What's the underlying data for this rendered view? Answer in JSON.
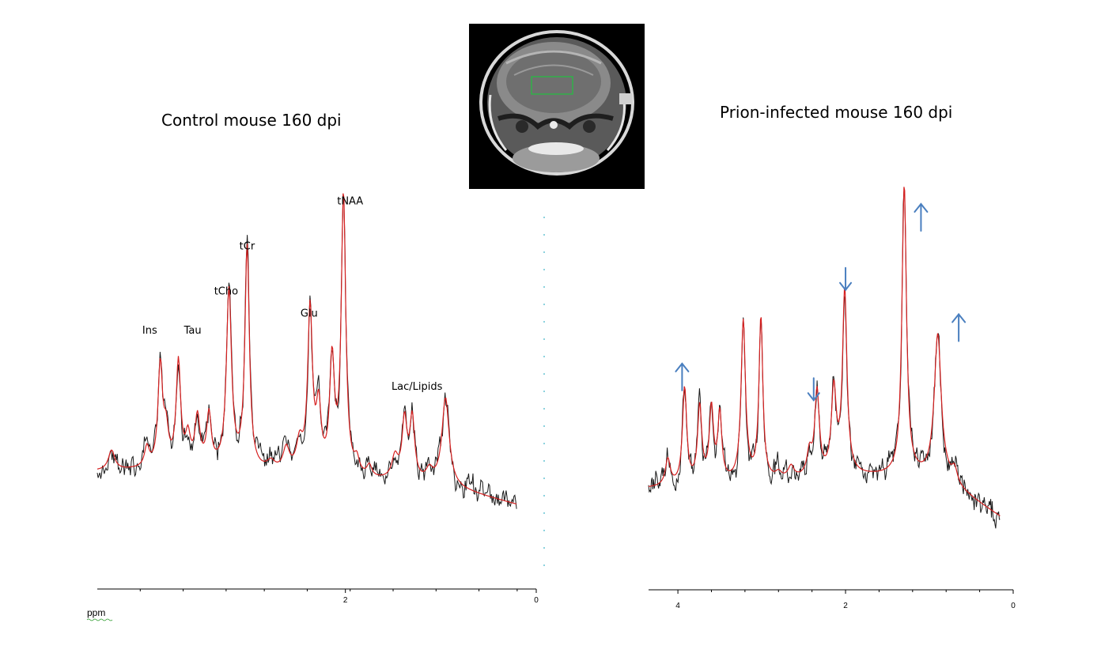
{
  "colors": {
    "measured": "#1a1a1a",
    "fit": "#d62020",
    "arrow": "#4a7fbf",
    "roi": "#22c040",
    "divider": "#3bb2c6"
  },
  "mri_image": {
    "description_icon": "brain-mri-icon"
  },
  "chart_data": [
    {
      "type": "line",
      "title": "Control mouse 160 dpi",
      "xlabel": "ppm",
      "ylabel": "",
      "x_reversed": true,
      "xlim": [
        4.6,
        0.0
      ],
      "ylim": [
        -0.15,
        1.0
      ],
      "ticks": [
        {
          "value": 2,
          "label": "2"
        },
        {
          "value": 0,
          "label": "0"
        }
      ],
      "minor_ticks": [
        4.15,
        3.7,
        3.25,
        2.85,
        2.4,
        1.95,
        1.5,
        1.05,
        0.6,
        0.2
      ],
      "baseline": [
        [
          4.6,
          0.11
        ],
        [
          3.5,
          0.12
        ],
        [
          2.8,
          0.1
        ],
        [
          2.0,
          0.08
        ],
        [
          1.0,
          0.06
        ],
        [
          0.2,
          -0.01
        ]
      ],
      "peaks": [
        {
          "ppm": 4.45,
          "height": 0.07,
          "width": 0.04
        },
        {
          "ppm": 4.08,
          "height": 0.07,
          "width": 0.03
        },
        {
          "ppm": 3.94,
          "height": 0.36,
          "width": 0.028
        },
        {
          "ppm": 3.88,
          "height": 0.12,
          "width": 0.03
        },
        {
          "ppm": 3.75,
          "height": 0.37,
          "width": 0.028
        },
        {
          "ppm": 3.65,
          "height": 0.1,
          "width": 0.03
        },
        {
          "ppm": 3.55,
          "height": 0.17,
          "width": 0.03
        },
        {
          "ppm": 3.43,
          "height": 0.18,
          "width": 0.028
        },
        {
          "ppm": 3.22,
          "height": 0.63,
          "width": 0.032
        },
        {
          "ppm": 3.03,
          "height": 0.79,
          "width": 0.028
        },
        {
          "ppm": 2.78,
          "height": 0.03,
          "width": 0.05
        },
        {
          "ppm": 2.62,
          "height": 0.08,
          "width": 0.04
        },
        {
          "ppm": 2.48,
          "height": 0.1,
          "width": 0.04
        },
        {
          "ppm": 2.37,
          "height": 0.58,
          "width": 0.03
        },
        {
          "ppm": 2.28,
          "height": 0.22,
          "width": 0.03
        },
        {
          "ppm": 2.14,
          "height": 0.4,
          "width": 0.03
        },
        {
          "ppm": 2.02,
          "height": 1.0,
          "width": 0.028
        },
        {
          "ppm": 1.88,
          "height": 0.05,
          "width": 0.03
        },
        {
          "ppm": 1.75,
          "height": 0.04,
          "width": 0.03
        },
        {
          "ppm": 1.48,
          "height": 0.08,
          "width": 0.04
        },
        {
          "ppm": 1.38,
          "height": 0.21,
          "width": 0.03
        },
        {
          "ppm": 1.3,
          "height": 0.22,
          "width": 0.03
        },
        {
          "ppm": 1.12,
          "height": 0.04,
          "width": 0.04
        },
        {
          "ppm": 0.95,
          "height": 0.31,
          "width": 0.045
        }
      ],
      "annotations": [
        {
          "text": "Ins",
          "ppm": 4.05,
          "y": 0.6
        },
        {
          "text": "Tau",
          "ppm": 3.6,
          "y": 0.6
        },
        {
          "text": "tCho",
          "ppm": 3.25,
          "y": 0.74
        },
        {
          "text": "tCr",
          "ppm": 3.03,
          "y": 0.9
        },
        {
          "text": "Glu",
          "ppm": 2.38,
          "y": 0.66
        },
        {
          "text": "tNAA",
          "ppm": 1.95,
          "y": 1.06
        },
        {
          "text": "Lac/Lipids",
          "ppm": 1.25,
          "y": 0.4
        }
      ],
      "arrows": []
    },
    {
      "type": "line",
      "title": "Prion-infected mouse 160 dpi",
      "xlabel": "",
      "ylabel": "",
      "x_reversed": true,
      "xlim": [
        4.35,
        0.0
      ],
      "ylim": [
        -0.2,
        1.0
      ],
      "ticks": [
        {
          "value": 4,
          "label": "4"
        },
        {
          "value": 2,
          "label": "2"
        },
        {
          "value": 0,
          "label": "0"
        }
      ],
      "minor_ticks": [
        3.6,
        3.2,
        2.8,
        2.4,
        1.6,
        1.2,
        0.8,
        0.4
      ],
      "baseline": [
        [
          4.35,
          0.02
        ],
        [
          3.8,
          0.03
        ],
        [
          3.0,
          0.04
        ],
        [
          2.0,
          0.06
        ],
        [
          1.2,
          0.06
        ],
        [
          0.8,
          0.04
        ],
        [
          0.15,
          -0.08
        ]
      ],
      "peaks": [
        {
          "ppm": 4.12,
          "height": 0.09,
          "width": 0.035
        },
        {
          "ppm": 3.92,
          "height": 0.33,
          "width": 0.03
        },
        {
          "ppm": 3.74,
          "height": 0.26,
          "width": 0.03
        },
        {
          "ppm": 3.6,
          "height": 0.25,
          "width": 0.03
        },
        {
          "ppm": 3.5,
          "height": 0.23,
          "width": 0.028
        },
        {
          "ppm": 3.22,
          "height": 0.55,
          "width": 0.032
        },
        {
          "ppm": 3.01,
          "height": 0.56,
          "width": 0.028
        },
        {
          "ppm": 2.8,
          "height": 0.02,
          "width": 0.04
        },
        {
          "ppm": 2.65,
          "height": 0.04,
          "width": 0.04
        },
        {
          "ppm": 2.43,
          "height": 0.08,
          "width": 0.035
        },
        {
          "ppm": 2.34,
          "height": 0.29,
          "width": 0.032
        },
        {
          "ppm": 2.14,
          "height": 0.29,
          "width": 0.035
        },
        {
          "ppm": 2.01,
          "height": 0.63,
          "width": 0.032
        },
        {
          "ppm": 1.3,
          "height": 1.0,
          "width": 0.032
        },
        {
          "ppm": 0.9,
          "height": 0.5,
          "width": 0.05
        },
        {
          "ppm": 0.7,
          "height": 0.05,
          "width": 0.04
        }
      ],
      "annotations": [],
      "arrows": [
        {
          "ppm": 3.95,
          "y": 0.45,
          "direction": "up"
        },
        {
          "ppm": 2.38,
          "y": 0.4,
          "direction": "down"
        },
        {
          "ppm": 2.0,
          "y": 0.78,
          "direction": "down"
        },
        {
          "ppm": 1.1,
          "y": 1.0,
          "direction": "up"
        },
        {
          "ppm": 0.65,
          "y": 0.62,
          "direction": "up"
        }
      ]
    }
  ]
}
